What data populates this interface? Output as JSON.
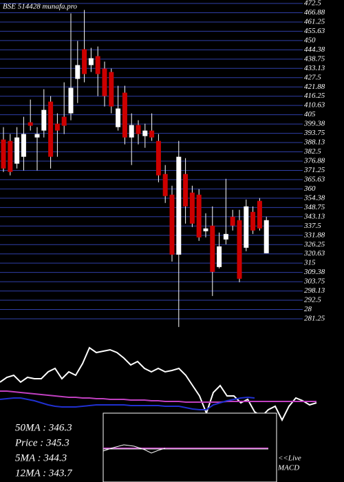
{
  "chart_data": [
    {
      "type": "candlestick",
      "title": "BSE 514428 munafa.pro",
      "up_color": "#ffffff",
      "down_color": "#cc0000",
      "grid": true,
      "grid_color": "#2f3fa8",
      "ylim": [
        281.25,
        472.5
      ],
      "yticks": [
        472.5,
        466.88,
        461.25,
        455.63,
        450,
        444.38,
        438.75,
        433.13,
        427.5,
        421.88,
        416.25,
        410.63,
        405,
        399.38,
        393.75,
        388.13,
        382.5,
        376.88,
        371.25,
        365.63,
        360,
        354.38,
        348.75,
        343.13,
        337.5,
        331.88,
        326.25,
        320.63,
        315,
        309.38,
        303.75,
        298.13,
        292.5,
        {
          "value": 286.88,
          "label": "28"
        },
        281.25
      ],
      "open": [
        389.97,
        389.13,
        375.34,
        379.52,
        400.42,
        391.22,
        395.4,
        412.96,
        399.58,
        403.76,
        405.85,
        426.75,
        444.73,
        435.11,
        440.55,
        433.02,
        430.93,
        397.49,
        418.39,
        391.22,
        398.75,
        392.06,
        395.4,
        389.13,
        369.07,
        356.53,
        320.16,
        369.07,
        357.78,
        356.53,
        334.37,
        337.72,
        312.64,
        329.36,
        343.15,
        341.06,
        324.34,
        346.08,
        352.77,
        321
      ],
      "high": [
        397.49,
        393.31,
        397.49,
        403.76,
        414.21,
        397.49,
        420.48,
        416.3,
        405.85,
        424.66,
        466.46,
        449.74,
        468.55,
        445.56,
        446.4,
        437.2,
        433.02,
        422.57,
        422.57,
        405.85,
        401.67,
        399.58,
        405.85,
        393.31,
        374.5,
        361.96,
        389.13,
        378.68,
        361.96,
        359.87,
        345.24,
        349.42,
        333.54,
        366.14,
        347.33,
        347.33,
        353.6,
        349.42,
        354.44,
        343.15
      ],
      "low": [
        370.32,
        368.23,
        372.41,
        371.16,
        395.4,
        371.16,
        391.22,
        372.41,
        379.52,
        393.31,
        401.67,
        412.12,
        424.66,
        430.93,
        416.3,
        410.03,
        405.85,
        395.4,
        387.04,
        374.5,
        387.04,
        384.95,
        389.13,
        364.05,
        351.51,
        315.98,
        276.27,
        338.97,
        336.88,
        328.52,
        330.61,
        295.08,
        311.8,
        326.43,
        334.79,
        303.44,
        322.25,
        332.7,
        334.79,
        321
      ],
      "close": [
        372.41,
        370.32,
        391.22,
        393.31,
        398.33,
        393.31,
        407.94,
        379.52,
        395.4,
        398.33,
        421.32,
        435.11,
        429.68,
        439.29,
        429.68,
        416.3,
        410.03,
        408.78,
        391.22,
        398.75,
        393.31,
        395.4,
        391.22,
        368.23,
        355.69,
        320.16,
        379.52,
        349.42,
        338.97,
        330.61,
        336.05,
        309.71,
        325.18,
        332.7,
        337.72,
        305.53,
        349.42,
        334.79,
        336.05,
        341.06
      ]
    },
    {
      "type": "line",
      "legend": [
        "50MA : 346.3",
        "Price  : 345.3",
        "5MA : 344.3",
        "12MA : 343.7"
      ],
      "live_label": "<<Live",
      "inset_label": "MACD",
      "series": [
        {
          "color": "#ffffff",
          "values": [
            55,
            62,
            65,
            55,
            62,
            60,
            60,
            70,
            75,
            60,
            70,
            65,
            82,
            105,
            98,
            100,
            102,
            98,
            90,
            80,
            85,
            75,
            70,
            75,
            70,
            72,
            75,
            65,
            50,
            35,
            10,
            40,
            50,
            35,
            35,
            25,
            30,
            12,
            5,
            15,
            20,
            0,
            20,
            32,
            28,
            22,
            25
          ]
        },
        {
          "color": "#c040c0",
          "values": [
            42,
            42,
            41,
            40,
            39,
            38,
            37,
            36,
            35,
            34,
            33,
            33,
            32,
            32,
            31,
            31,
            30,
            30,
            30,
            29,
            29,
            29,
            28,
            28,
            27,
            27,
            27,
            26,
            26,
            26,
            26,
            26,
            26,
            27,
            27,
            27,
            27,
            27,
            27,
            27,
            27,
            27,
            27,
            27,
            27,
            27,
            27
          ]
        },
        {
          "color": "#2030d0",
          "values": [
            30,
            31,
            32,
            32,
            30,
            28,
            25,
            22,
            20,
            19,
            19,
            19,
            20,
            21,
            22,
            22,
            22,
            22,
            22,
            21,
            21,
            21,
            21,
            21,
            20,
            20,
            20,
            18,
            16,
            15,
            15,
            22,
            25,
            28,
            30,
            32,
            33,
            32,
            null,
            null,
            null,
            null,
            null,
            null,
            null,
            null,
            null
          ]
        }
      ]
    }
  ]
}
